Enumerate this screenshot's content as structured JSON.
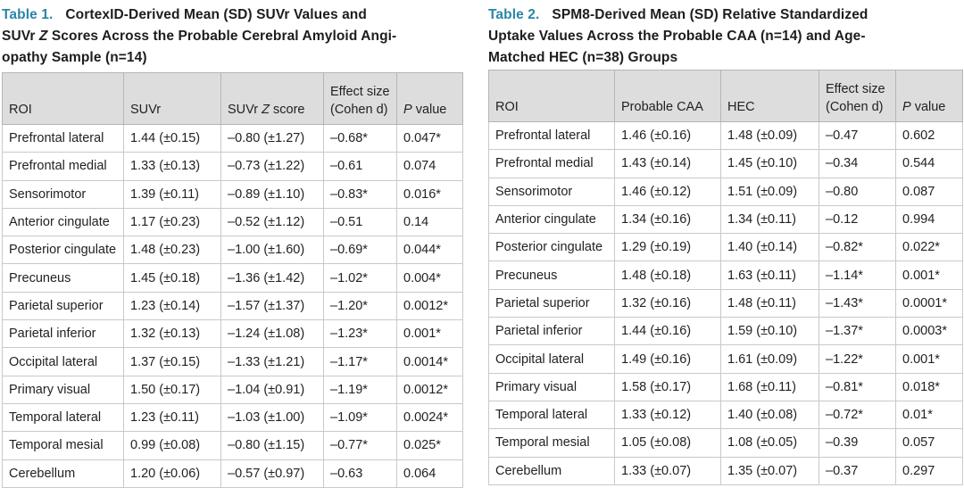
{
  "table1": {
    "label": "Table 1.",
    "title_part1": "CortexID-Derived Mean (SD) SUVr Values and",
    "title_part2a": "SUVr ",
    "title_part2b": "Z",
    "title_part2c": " Scores Across the Probable Cerebral Amyloid Angi-",
    "title_part3": "opathy Sample (n=14)",
    "headers": {
      "roi": "ROI",
      "suvr": "SUVr",
      "zscore_pre": "SUVr ",
      "zscore_italic": "Z",
      "zscore_post": " score",
      "effect_line1": "Effect size",
      "effect_line2": "(Cohen d)",
      "p_italic": "P",
      "p_post": " value"
    },
    "rows": [
      {
        "roi": "Prefrontal lateral",
        "suvr": "1.44 (±0.15)",
        "z": "–0.80 (±1.27)",
        "d": "–0.68*",
        "p": "0.047*"
      },
      {
        "roi": "Prefrontal medial",
        "suvr": "1.33 (±0.13)",
        "z": "–0.73 (±1.22)",
        "d": "–0.61",
        "p": "0.074"
      },
      {
        "roi": "Sensorimotor",
        "suvr": "1.39 (±0.11)",
        "z": "–0.89 (±1.10)",
        "d": "–0.83*",
        "p": "0.016*"
      },
      {
        "roi": "Anterior cingulate",
        "suvr": "1.17 (±0.23)",
        "z": "–0.52 (±1.12)",
        "d": "–0.51",
        "p": "0.14"
      },
      {
        "roi": "Posterior cingulate",
        "suvr": "1.48 (±0.23)",
        "z": "–1.00 (±1.60)",
        "d": "–0.69*",
        "p": "0.044*"
      },
      {
        "roi": "Precuneus",
        "suvr": "1.45 (±0.18)",
        "z": "–1.36 (±1.42)",
        "d": "–1.02*",
        "p": "0.004*"
      },
      {
        "roi": "Parietal superior",
        "suvr": "1.23 (±0.14)",
        "z": "–1.57 (±1.37)",
        "d": "–1.20*",
        "p": "0.0012*"
      },
      {
        "roi": "Parietal inferior",
        "suvr": "1.32 (±0.13)",
        "z": "–1.24 (±1.08)",
        "d": "–1.23*",
        "p": "0.001*"
      },
      {
        "roi": "Occipital lateral",
        "suvr": "1.37 (±0.15)",
        "z": "–1.33 (±1.21)",
        "d": "–1.17*",
        "p": "0.0014*"
      },
      {
        "roi": "Primary visual",
        "suvr": "1.50 (±0.17)",
        "z": "–1.04 (±0.91)",
        "d": "–1.19*",
        "p": "0.0012*"
      },
      {
        "roi": "Temporal lateral",
        "suvr": "1.23 (±0.11)",
        "z": "–1.03 (±1.00)",
        "d": "–1.09*",
        "p": "0.0024*"
      },
      {
        "roi": "Temporal mesial",
        "suvr": "0.99 (±0.08)",
        "z": "–0.80 (±1.15)",
        "d": "–0.77*",
        "p": "0.025*"
      },
      {
        "roi": "Cerebellum",
        "suvr": "1.20 (±0.06)",
        "z": "–0.57 (±0.97)",
        "d": "–0.63",
        "p": "0.064"
      }
    ]
  },
  "table2": {
    "label": "Table 2.",
    "title_part1": "SPM8-Derived Mean (SD) Relative Standardized",
    "title_part2": "Uptake Values Across the Probable CAA (n=14) and Age-",
    "title_part3": "Matched HEC (n=38) Groups",
    "headers": {
      "roi": "ROI",
      "caa": "Probable CAA",
      "hec": "HEC",
      "effect_line1": "Effect size",
      "effect_line2": "(Cohen d)",
      "p_italic": "P",
      "p_post": " value"
    },
    "rows": [
      {
        "roi": "Prefrontal lateral",
        "caa": "1.46 (±0.16)",
        "hec": "1.48 (±0.09)",
        "d": "–0.47",
        "p": "0.602"
      },
      {
        "roi": "Prefrontal medial",
        "caa": "1.43 (±0.14)",
        "hec": "1.45 (±0.10)",
        "d": "–0.34",
        "p": "0.544"
      },
      {
        "roi": "Sensorimotor",
        "caa": "1.46 (±0.12)",
        "hec": "1.51 (±0.09)",
        "d": "–0.80",
        "p": "0.087"
      },
      {
        "roi": "Anterior cingulate",
        "caa": "1.34 (±0.16)",
        "hec": "1.34 (±0.11)",
        "d": "–0.12",
        "p": "0.994"
      },
      {
        "roi": "Posterior cingulate",
        "caa": "1.29 (±0.19)",
        "hec": "1.40 (±0.14)",
        "d": "–0.82*",
        "p": "0.022*"
      },
      {
        "roi": "Precuneus",
        "caa": "1.48 (±0.18)",
        "hec": "1.63 (±0.11)",
        "d": "–1.14*",
        "p": "0.001*"
      },
      {
        "roi": "Parietal superior",
        "caa": "1.32 (±0.16)",
        "hec": "1.48 (±0.11)",
        "d": "–1.43*",
        "p": "0.0001*"
      },
      {
        "roi": "Parietal inferior",
        "caa": "1.44 (±0.16)",
        "hec": "1.59 (±0.10)",
        "d": "–1.37*",
        "p": "0.0003*"
      },
      {
        "roi": "Occipital lateral",
        "caa": "1.49 (±0.16)",
        "hec": "1.61 (±0.09)",
        "d": "–1.22*",
        "p": "0.001*"
      },
      {
        "roi": "Primary visual",
        "caa": "1.58 (±0.17)",
        "hec": "1.68 (±0.11)",
        "d": "–0.81*",
        "p": "0.018*"
      },
      {
        "roi": "Temporal lateral",
        "caa": "1.33 (±0.12)",
        "hec": "1.40 (±0.08)",
        "d": "–0.72*",
        "p": "0.01*"
      },
      {
        "roi": "Temporal mesial",
        "caa": "1.05 (±0.08)",
        "hec": "1.08 (±0.05)",
        "d": "–0.39",
        "p": "0.057"
      },
      {
        "roi": "Cerebellum",
        "caa": "1.33 (±0.07)",
        "hec": "1.35 (±0.07)",
        "d": "–0.37",
        "p": "0.297"
      }
    ]
  }
}
